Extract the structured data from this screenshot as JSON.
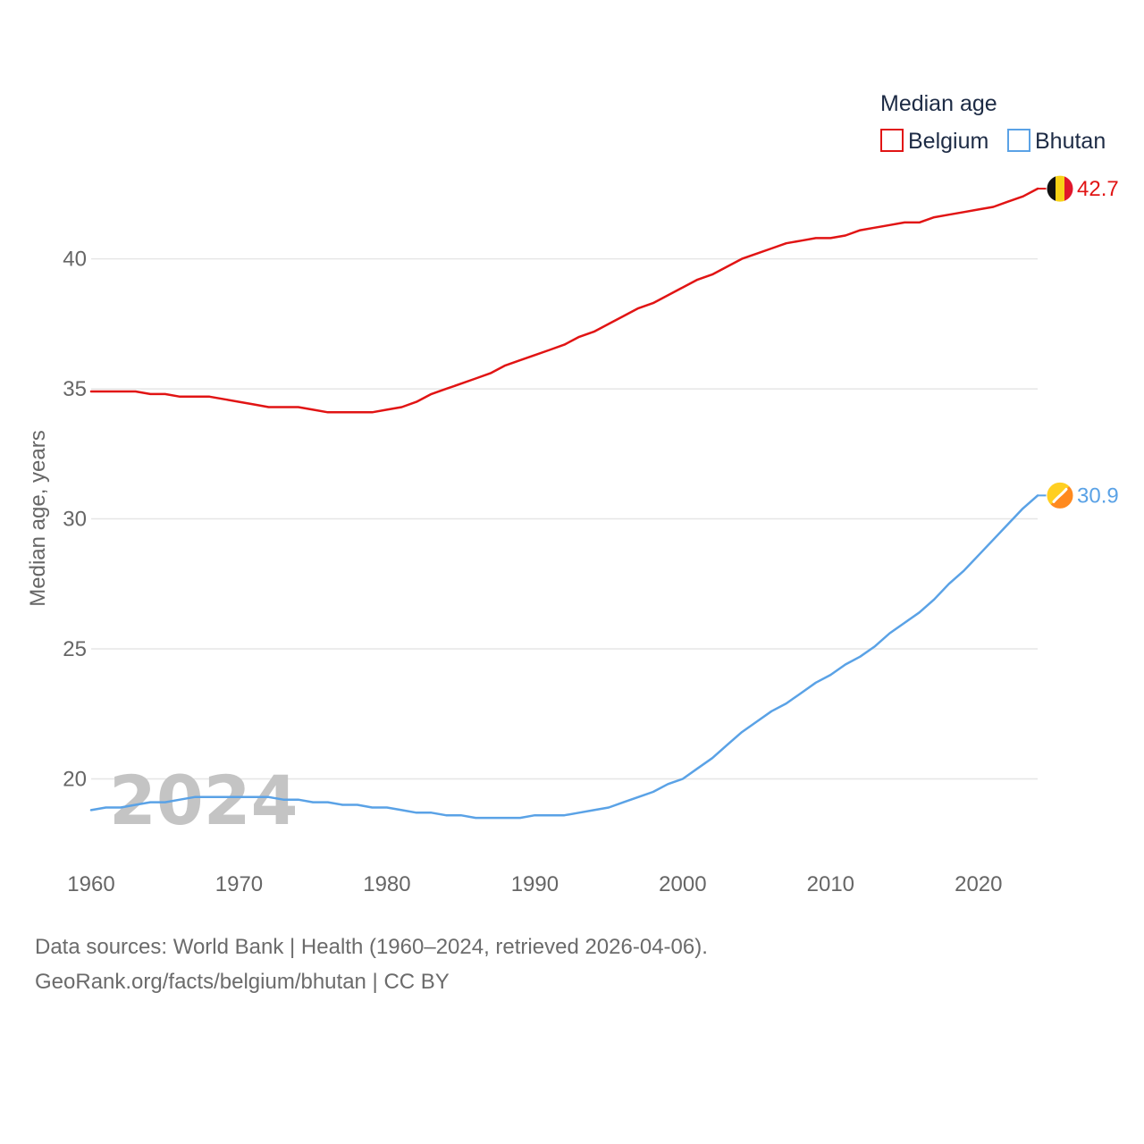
{
  "chart_data": {
    "type": "line",
    "ylabel": "Median age, years",
    "xlabel": "",
    "x_ticks": [
      1960,
      1970,
      1980,
      1990,
      2000,
      2010,
      2020
    ],
    "y_ticks": [
      20,
      25,
      30,
      35,
      40
    ],
    "xlim": [
      1960,
      2024
    ],
    "ylim": [
      17.3,
      44.8
    ],
    "grid": "horizontal",
    "legend": {
      "title": "Median age",
      "position": "top-right"
    },
    "year_watermark": "2024",
    "series": [
      {
        "name": "Belgium",
        "color": "#e11414",
        "end_label": "42.7",
        "flag": "belgium-flag",
        "x": [
          1960,
          1961,
          1962,
          1963,
          1964,
          1965,
          1966,
          1967,
          1968,
          1969,
          1970,
          1971,
          1972,
          1973,
          1974,
          1975,
          1976,
          1977,
          1978,
          1979,
          1980,
          1981,
          1982,
          1983,
          1984,
          1985,
          1986,
          1987,
          1988,
          1989,
          1990,
          1991,
          1992,
          1993,
          1994,
          1995,
          1996,
          1997,
          1998,
          1999,
          2000,
          2001,
          2002,
          2003,
          2004,
          2005,
          2006,
          2007,
          2008,
          2009,
          2010,
          2011,
          2012,
          2013,
          2014,
          2015,
          2016,
          2017,
          2018,
          2019,
          2020,
          2021,
          2022,
          2023,
          2024
        ],
        "values": [
          34.9,
          34.9,
          34.9,
          34.9,
          34.8,
          34.8,
          34.7,
          34.7,
          34.7,
          34.6,
          34.5,
          34.4,
          34.3,
          34.3,
          34.3,
          34.2,
          34.1,
          34.1,
          34.1,
          34.1,
          34.2,
          34.3,
          34.5,
          34.8,
          35.0,
          35.2,
          35.4,
          35.6,
          35.9,
          36.1,
          36.3,
          36.5,
          36.7,
          37.0,
          37.2,
          37.5,
          37.8,
          38.1,
          38.3,
          38.6,
          38.9,
          39.2,
          39.4,
          39.7,
          40.0,
          40.2,
          40.4,
          40.6,
          40.7,
          40.8,
          40.8,
          40.9,
          41.1,
          41.2,
          41.3,
          41.4,
          41.4,
          41.6,
          41.7,
          41.8,
          41.9,
          42.0,
          42.2,
          42.4,
          42.7
        ]
      },
      {
        "name": "Bhutan",
        "color": "#5aa2e6",
        "end_label": "30.9",
        "flag": "bhutan-flag",
        "x": [
          1960,
          1961,
          1962,
          1963,
          1964,
          1965,
          1966,
          1967,
          1968,
          1969,
          1970,
          1971,
          1972,
          1973,
          1974,
          1975,
          1976,
          1977,
          1978,
          1979,
          1980,
          1981,
          1982,
          1983,
          1984,
          1985,
          1986,
          1987,
          1988,
          1989,
          1990,
          1991,
          1992,
          1993,
          1994,
          1995,
          1996,
          1997,
          1998,
          1999,
          2000,
          2001,
          2002,
          2003,
          2004,
          2005,
          2006,
          2007,
          2008,
          2009,
          2010,
          2011,
          2012,
          2013,
          2014,
          2015,
          2016,
          2017,
          2018,
          2019,
          2020,
          2021,
          2022,
          2023,
          2024
        ],
        "values": [
          18.8,
          18.9,
          18.9,
          19.0,
          19.1,
          19.1,
          19.2,
          19.3,
          19.3,
          19.3,
          19.3,
          19.3,
          19.3,
          19.2,
          19.2,
          19.1,
          19.1,
          19.0,
          19.0,
          18.9,
          18.9,
          18.8,
          18.7,
          18.7,
          18.6,
          18.6,
          18.5,
          18.5,
          18.5,
          18.5,
          18.6,
          18.6,
          18.6,
          18.7,
          18.8,
          18.9,
          19.1,
          19.3,
          19.5,
          19.8,
          20.0,
          20.4,
          20.8,
          21.3,
          21.8,
          22.2,
          22.6,
          22.9,
          23.3,
          23.7,
          24.0,
          24.4,
          24.7,
          25.1,
          25.6,
          26.0,
          26.4,
          26.9,
          27.5,
          28.0,
          28.6,
          29.2,
          29.8,
          30.4,
          30.9
        ]
      }
    ]
  },
  "footer": {
    "sources": "Data sources: World Bank | Health (1960–2024, retrieved 2026-04-06).",
    "url": "GeoRank.org/facts/belgium/bhutan | CC BY"
  }
}
